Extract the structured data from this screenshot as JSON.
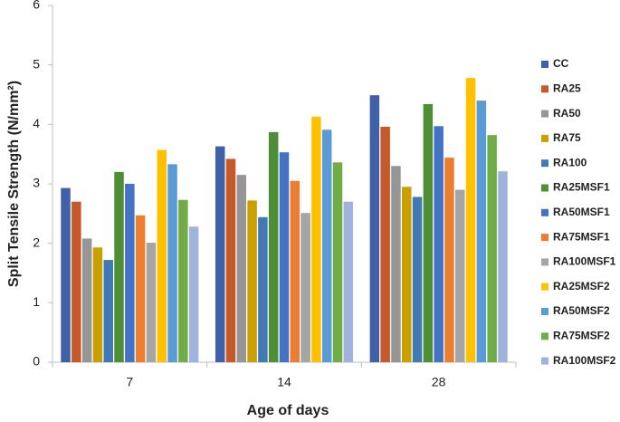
{
  "chart_data": {
    "type": "bar",
    "x_label": "Age of days",
    "y_label": "Split Tensile Strength (N/mm²)",
    "categories": [
      "7",
      "14",
      "28"
    ],
    "ylim": [
      0,
      6
    ],
    "yticks": [
      0,
      1,
      2,
      3,
      4,
      5,
      6
    ],
    "series": [
      {
        "name": "CC",
        "color": "#4060a8",
        "values": [
          2.93,
          3.63,
          4.49
        ]
      },
      {
        "name": "RA25",
        "color": "#c55a28",
        "values": [
          2.7,
          3.42,
          3.96
        ]
      },
      {
        "name": "RA50",
        "color": "#969696",
        "values": [
          2.08,
          3.15,
          3.3
        ]
      },
      {
        "name": "RA75",
        "color": "#c9a000",
        "values": [
          1.93,
          2.72,
          2.95
        ]
      },
      {
        "name": "RA100",
        "color": "#3f7ab5",
        "values": [
          1.72,
          2.44,
          2.78
        ]
      },
      {
        "name": "RA25MSF1",
        "color": "#4e8f35",
        "values": [
          3.2,
          3.87,
          4.34
        ]
      },
      {
        "name": "RA50MSF1",
        "color": "#4472c4",
        "values": [
          3.0,
          3.53,
          3.97
        ]
      },
      {
        "name": "RA75MSF1",
        "color": "#ed7d31",
        "values": [
          2.47,
          3.05,
          3.44
        ]
      },
      {
        "name": "RA100MSF1",
        "color": "#a5a5a5",
        "values": [
          2.01,
          2.51,
          2.9
        ]
      },
      {
        "name": "RA25MSF2",
        "color": "#ffc000",
        "values": [
          3.57,
          4.13,
          4.78
        ]
      },
      {
        "name": "RA50MSF2",
        "color": "#5b9bd5",
        "values": [
          3.33,
          3.91,
          4.4
        ]
      },
      {
        "name": "RA75MSF2",
        "color": "#70ad47",
        "values": [
          2.73,
          3.36,
          3.82
        ]
      },
      {
        "name": "RA100MSF2",
        "color": "#9fb3dd",
        "values": [
          2.28,
          2.7,
          3.21
        ]
      }
    ]
  }
}
